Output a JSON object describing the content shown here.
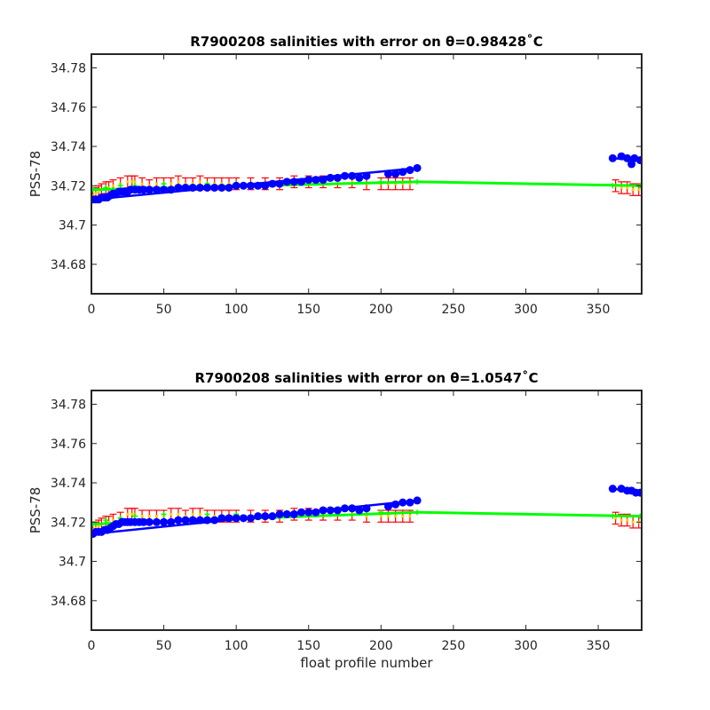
{
  "chart_data": [
    {
      "type": "scatter",
      "title": "R7900208 salinities with error on θ=0.98428˚C",
      "xlabel": "",
      "ylabel": "PSS-78",
      "xlim": [
        0,
        380
      ],
      "ylim": [
        34.665,
        34.787
      ],
      "xticks": [
        "0",
        "50",
        "100",
        "150",
        "200",
        "250",
        "300",
        "350"
      ],
      "yticks": [
        "34.78",
        "34.76",
        "34.74",
        "34.72",
        "34.7",
        "34.68"
      ],
      "grid": false,
      "colors": {
        "observed": "#0000ff",
        "mapped": "#00ff00",
        "error": "#ff0000",
        "error_fill": "#ffd000"
      },
      "series": [
        {
          "role": "observed",
          "points": [
            [
              1,
              34.713
            ],
            [
              3,
              34.713
            ],
            [
              5,
              34.713
            ],
            [
              7,
              34.714
            ],
            [
              9,
              34.714
            ],
            [
              11,
              34.714
            ],
            [
              13,
              34.715
            ],
            [
              15,
              34.716
            ],
            [
              17,
              34.716
            ],
            [
              19,
              34.717
            ],
            [
              21,
              34.717
            ],
            [
              23,
              34.717
            ],
            [
              25,
              34.717
            ],
            [
              27,
              34.718
            ],
            [
              30,
              34.718
            ],
            [
              33,
              34.718
            ],
            [
              36,
              34.718
            ],
            [
              40,
              34.718
            ],
            [
              45,
              34.718
            ],
            [
              50,
              34.718
            ],
            [
              55,
              34.718
            ],
            [
              60,
              34.719
            ],
            [
              65,
              34.719
            ],
            [
              70,
              34.719
            ],
            [
              75,
              34.719
            ],
            [
              80,
              34.719
            ],
            [
              85,
              34.719
            ],
            [
              90,
              34.719
            ],
            [
              95,
              34.719
            ],
            [
              100,
              34.72
            ],
            [
              105,
              34.72
            ],
            [
              110,
              34.72
            ],
            [
              115,
              34.72
            ],
            [
              120,
              34.72
            ],
            [
              125,
              34.721
            ],
            [
              130,
              34.721
            ],
            [
              135,
              34.722
            ],
            [
              140,
              34.722
            ],
            [
              145,
              34.722
            ],
            [
              150,
              34.723
            ],
            [
              155,
              34.723
            ],
            [
              160,
              34.723
            ],
            [
              165,
              34.724
            ],
            [
              170,
              34.724
            ],
            [
              175,
              34.725
            ],
            [
              180,
              34.725
            ],
            [
              185,
              34.724
            ],
            [
              190,
              34.725
            ],
            [
              205,
              34.726
            ],
            [
              210,
              34.726
            ],
            [
              215,
              34.727
            ],
            [
              220,
              34.728
            ],
            [
              225,
              34.729
            ],
            [
              360,
              34.734
            ],
            [
              366,
              34.735
            ],
            [
              370,
              34.734
            ],
            [
              373,
              34.731
            ],
            [
              375,
              34.734
            ],
            [
              379,
              34.733
            ]
          ],
          "line_segments": [
            [
              [
                1,
                34.713
              ],
              [
                225,
                34.729
              ]
            ],
            [
              [
                360,
                34.734
              ],
              [
                379,
                34.733
              ]
            ]
          ]
        },
        {
          "role": "mapped",
          "points": [
            [
              1,
              34.718
            ],
            [
              10,
              34.719
            ],
            [
              20,
              34.72
            ],
            [
              30,
              34.72
            ],
            [
              50,
              34.721
            ],
            [
              80,
              34.721
            ],
            [
              100,
              34.721
            ],
            [
              150,
              34.722
            ],
            [
              200,
              34.722
            ],
            [
              225,
              34.722
            ],
            [
              360,
              34.72
            ],
            [
              379,
              34.72
            ]
          ],
          "line_segments": [
            [
              [
                1,
                34.718
              ],
              [
                225,
                34.722
              ]
            ],
            [
              [
                225,
                34.722
              ],
              [
                379,
                34.72
              ]
            ]
          ]
        },
        {
          "role": "error",
          "error_half": 0.003,
          "points": [
            [
              1,
              34.715
            ],
            [
              3,
              34.716
            ],
            [
              5,
              34.717
            ],
            [
              7,
              34.718
            ],
            [
              10,
              34.719
            ],
            [
              12,
              34.719
            ],
            [
              15,
              34.72
            ],
            [
              20,
              34.721
            ],
            [
              25,
              34.722
            ],
            [
              28,
              34.722
            ],
            [
              30,
              34.722
            ],
            [
              35,
              34.721
            ],
            [
              40,
              34.72
            ],
            [
              45,
              34.721
            ],
            [
              50,
              34.721
            ],
            [
              55,
              34.721
            ],
            [
              60,
              34.722
            ],
            [
              65,
              34.721
            ],
            [
              70,
              34.721
            ],
            [
              75,
              34.722
            ],
            [
              80,
              34.721
            ],
            [
              85,
              34.721
            ],
            [
              90,
              34.721
            ],
            [
              95,
              34.721
            ],
            [
              100,
              34.721
            ],
            [
              110,
              34.721
            ],
            [
              120,
              34.721
            ],
            [
              130,
              34.721
            ],
            [
              140,
              34.722
            ],
            [
              150,
              34.722
            ],
            [
              160,
              34.722
            ],
            [
              170,
              34.722
            ],
            [
              180,
              34.722
            ],
            [
              190,
              34.721
            ],
            [
              200,
              34.721
            ],
            [
              205,
              34.721
            ],
            [
              210,
              34.721
            ],
            [
              215,
              34.721
            ],
            [
              220,
              34.721
            ],
            [
              362,
              34.72
            ],
            [
              366,
              34.719
            ],
            [
              370,
              34.719
            ],
            [
              374,
              34.718
            ],
            [
              378,
              34.718
            ]
          ]
        }
      ]
    },
    {
      "type": "scatter",
      "title": "R7900208 salinities with error on θ=1.0547˚C",
      "xlabel": "float profile number",
      "ylabel": "PSS-78",
      "xlim": [
        0,
        380
      ],
      "ylim": [
        34.665,
        34.787
      ],
      "xticks": [
        "0",
        "50",
        "100",
        "150",
        "200",
        "250",
        "300",
        "350"
      ],
      "yticks": [
        "34.78",
        "34.76",
        "34.74",
        "34.72",
        "34.7",
        "34.68"
      ],
      "grid": false,
      "colors": {
        "observed": "#0000ff",
        "mapped": "#00ff00",
        "error": "#ff0000",
        "error_fill": "#ffd000"
      },
      "series": [
        {
          "role": "observed",
          "points": [
            [
              1,
              34.714
            ],
            [
              3,
              34.715
            ],
            [
              5,
              34.715
            ],
            [
              7,
              34.715
            ],
            [
              9,
              34.716
            ],
            [
              11,
              34.716
            ],
            [
              13,
              34.717
            ],
            [
              15,
              34.718
            ],
            [
              17,
              34.719
            ],
            [
              19,
              34.719
            ],
            [
              21,
              34.72
            ],
            [
              23,
              34.72
            ],
            [
              25,
              34.72
            ],
            [
              27,
              34.72
            ],
            [
              30,
              34.72
            ],
            [
              33,
              34.72
            ],
            [
              36,
              34.72
            ],
            [
              40,
              34.72
            ],
            [
              45,
              34.72
            ],
            [
              50,
              34.72
            ],
            [
              55,
              34.72
            ],
            [
              60,
              34.721
            ],
            [
              65,
              34.721
            ],
            [
              70,
              34.721
            ],
            [
              75,
              34.721
            ],
            [
              80,
              34.721
            ],
            [
              85,
              34.721
            ],
            [
              90,
              34.722
            ],
            [
              95,
              34.722
            ],
            [
              100,
              34.722
            ],
            [
              105,
              34.722
            ],
            [
              110,
              34.722
            ],
            [
              115,
              34.723
            ],
            [
              120,
              34.723
            ],
            [
              125,
              34.723
            ],
            [
              130,
              34.724
            ],
            [
              135,
              34.724
            ],
            [
              140,
              34.724
            ],
            [
              145,
              34.725
            ],
            [
              150,
              34.725
            ],
            [
              155,
              34.725
            ],
            [
              160,
              34.726
            ],
            [
              165,
              34.726
            ],
            [
              170,
              34.726
            ],
            [
              175,
              34.727
            ],
            [
              180,
              34.727
            ],
            [
              185,
              34.726
            ],
            [
              190,
              34.727
            ],
            [
              205,
              34.728
            ],
            [
              210,
              34.729
            ],
            [
              215,
              34.73
            ],
            [
              220,
              34.73
            ],
            [
              225,
              34.731
            ],
            [
              360,
              34.737
            ],
            [
              366,
              34.737
            ],
            [
              370,
              34.736
            ],
            [
              373,
              34.736
            ],
            [
              376,
              34.735
            ],
            [
              379,
              34.735
            ]
          ],
          "line_segments": [
            [
              [
                1,
                34.714
              ],
              [
                225,
                34.731
              ]
            ],
            [
              [
                360,
                34.737
              ],
              [
                379,
                34.735
              ]
            ]
          ]
        },
        {
          "role": "mapped",
          "points": [
            [
              1,
              34.719
            ],
            [
              10,
              34.721
            ],
            [
              20,
              34.722
            ],
            [
              30,
              34.723
            ],
            [
              50,
              34.724
            ],
            [
              80,
              34.724
            ],
            [
              100,
              34.724
            ],
            [
              150,
              34.725
            ],
            [
              200,
              34.725
            ],
            [
              225,
              34.725
            ],
            [
              360,
              34.723
            ],
            [
              379,
              34.723
            ]
          ],
          "line_segments": [
            [
              [
                1,
                34.719
              ],
              [
                225,
                34.725
              ]
            ],
            [
              [
                225,
                34.725
              ],
              [
                379,
                34.723
              ]
            ]
          ]
        },
        {
          "role": "error",
          "error_half": 0.003,
          "points": [
            [
              1,
              34.716
            ],
            [
              3,
              34.717
            ],
            [
              5,
              34.718
            ],
            [
              7,
              34.719
            ],
            [
              10,
              34.72
            ],
            [
              12,
              34.72
            ],
            [
              15,
              34.721
            ],
            [
              20,
              34.722
            ],
            [
              25,
              34.724
            ],
            [
              28,
              34.724
            ],
            [
              30,
              34.724
            ],
            [
              35,
              34.723
            ],
            [
              40,
              34.723
            ],
            [
              45,
              34.723
            ],
            [
              50,
              34.723
            ],
            [
              55,
              34.724
            ],
            [
              60,
              34.724
            ],
            [
              65,
              34.723
            ],
            [
              70,
              34.724
            ],
            [
              75,
              34.724
            ],
            [
              80,
              34.723
            ],
            [
              85,
              34.723
            ],
            [
              90,
              34.723
            ],
            [
              95,
              34.723
            ],
            [
              100,
              34.723
            ],
            [
              110,
              34.723
            ],
            [
              120,
              34.723
            ],
            [
              130,
              34.723
            ],
            [
              140,
              34.724
            ],
            [
              150,
              34.724
            ],
            [
              160,
              34.724
            ],
            [
              170,
              34.724
            ],
            [
              180,
              34.724
            ],
            [
              190,
              34.723
            ],
            [
              200,
              34.723
            ],
            [
              205,
              34.723
            ],
            [
              210,
              34.723
            ],
            [
              215,
              34.723
            ],
            [
              220,
              34.723
            ],
            [
              362,
              34.722
            ],
            [
              366,
              34.721
            ],
            [
              370,
              34.721
            ],
            [
              374,
              34.72
            ],
            [
              378,
              34.72
            ]
          ]
        }
      ]
    }
  ]
}
